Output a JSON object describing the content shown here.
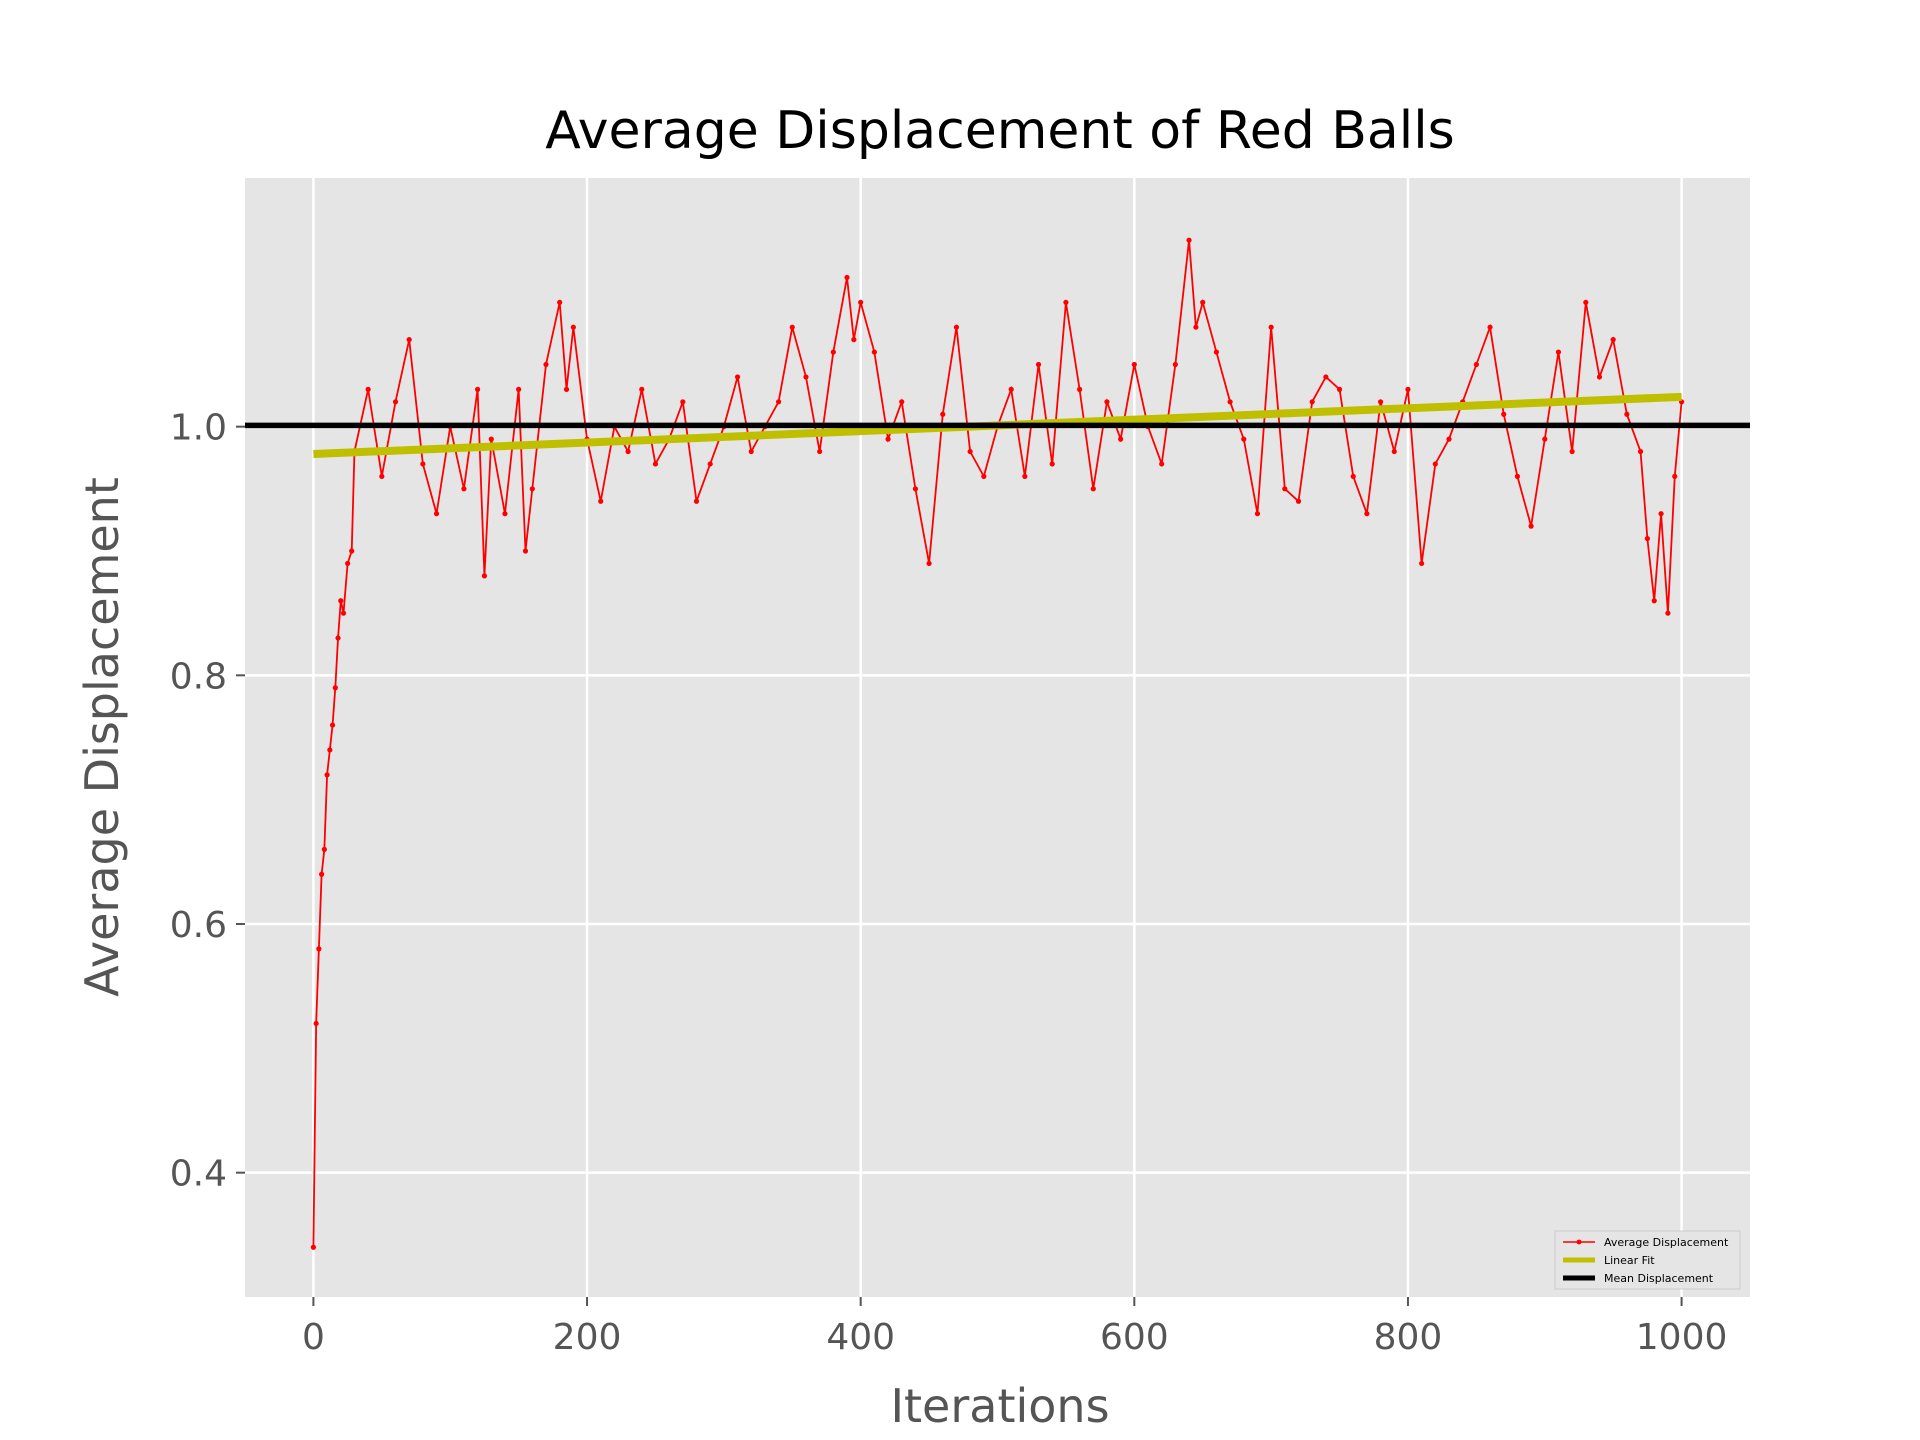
{
  "chart_data": {
    "type": "line",
    "title": "Average Displacement of Red Balls",
    "xlabel": "Iterations",
    "ylabel": "Average Displacement",
    "xlim": [
      -50,
      1050
    ],
    "ylim": [
      0.3,
      1.2
    ],
    "xticks": [
      0,
      200,
      400,
      600,
      800,
      1000
    ],
    "xtick_labels": [
      "0",
      "200",
      "400",
      "600",
      "800",
      "1000"
    ],
    "yticks": [
      0.4,
      0.6,
      0.8,
      1.0
    ],
    "ytick_labels": [
      "0.4",
      "0.6",
      "0.8",
      "1.0"
    ],
    "grid": true,
    "legend_position": "bottom-right",
    "series": [
      {
        "name": "Average Displacement",
        "color": "#ff0000",
        "style": "line-with-dots",
        "x": [
          0,
          2,
          4,
          6,
          8,
          10,
          12,
          14,
          16,
          18,
          20,
          22,
          25,
          28,
          30,
          40,
          50,
          60,
          70,
          80,
          90,
          100,
          110,
          120,
          125,
          130,
          140,
          150,
          155,
          160,
          170,
          180,
          185,
          190,
          200,
          210,
          220,
          230,
          240,
          250,
          260,
          270,
          280,
          290,
          300,
          310,
          320,
          330,
          340,
          350,
          360,
          370,
          380,
          390,
          395,
          400,
          410,
          420,
          430,
          440,
          450,
          460,
          470,
          480,
          490,
          500,
          510,
          520,
          530,
          540,
          550,
          560,
          570,
          580,
          590,
          600,
          610,
          620,
          630,
          640,
          645,
          650,
          660,
          670,
          680,
          690,
          700,
          710,
          720,
          730,
          740,
          750,
          760,
          770,
          780,
          790,
          800,
          810,
          820,
          830,
          840,
          850,
          860,
          870,
          880,
          890,
          900,
          910,
          920,
          930,
          940,
          950,
          960,
          970,
          975,
          980,
          985,
          990,
          995,
          1000
        ],
        "y": [
          0.34,
          0.52,
          0.58,
          0.64,
          0.66,
          0.72,
          0.74,
          0.76,
          0.79,
          0.83,
          0.86,
          0.85,
          0.89,
          0.9,
          0.98,
          1.03,
          0.96,
          1.02,
          1.07,
          0.97,
          0.93,
          1.0,
          0.95,
          1.03,
          0.88,
          0.99,
          0.93,
          1.03,
          0.9,
          0.95,
          1.05,
          1.1,
          1.03,
          1.08,
          0.99,
          0.94,
          1.0,
          0.98,
          1.03,
          0.97,
          0.99,
          1.02,
          0.94,
          0.97,
          1.0,
          1.04,
          0.98,
          1.0,
          1.02,
          1.08,
          1.04,
          0.98,
          1.06,
          1.12,
          1.07,
          1.1,
          1.06,
          0.99,
          1.02,
          0.95,
          0.89,
          1.01,
          1.08,
          0.98,
          0.96,
          1.0,
          1.03,
          0.96,
          1.05,
          0.97,
          1.1,
          1.03,
          0.95,
          1.02,
          0.99,
          1.05,
          1.0,
          0.97,
          1.05,
          1.15,
          1.08,
          1.1,
          1.06,
          1.02,
          0.99,
          0.93,
          1.08,
          0.95,
          0.94,
          1.02,
          1.04,
          1.03,
          0.96,
          0.93,
          1.02,
          0.98,
          1.03,
          0.89,
          0.97,
          0.99,
          1.02,
          1.05,
          1.08,
          1.01,
          0.96,
          0.92,
          0.99,
          1.06,
          0.98,
          1.1,
          1.04,
          1.07,
          1.01,
          0.98,
          0.91,
          0.86,
          0.93,
          0.85,
          0.96,
          1.02
        ]
      },
      {
        "name": "Linear Fit",
        "color": "#bfbf00",
        "style": "line",
        "x": [
          0,
          1000
        ],
        "y": [
          0.978,
          1.024
        ]
      },
      {
        "name": "Mean Displacement",
        "color": "#000000",
        "style": "hline",
        "y": 1.001
      }
    ]
  }
}
